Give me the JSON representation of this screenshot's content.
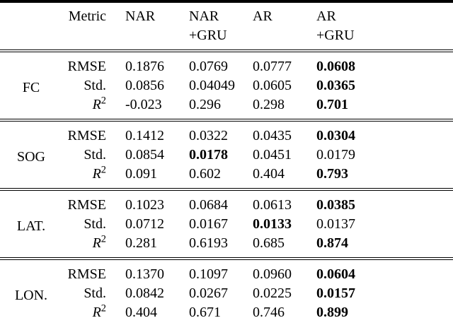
{
  "colors": {
    "background": "#ffffff",
    "text": "#000000",
    "rule": "#000000"
  },
  "table": {
    "header": {
      "metric_label": "Metric",
      "columns": [
        {
          "line1": "NAR",
          "line2": ""
        },
        {
          "line1": "NAR",
          "line2": "+GRU"
        },
        {
          "line1": "AR",
          "line2": ""
        },
        {
          "line1": "AR",
          "line2": "+GRU"
        }
      ]
    },
    "groups": [
      {
        "label": "FC",
        "rows": [
          {
            "metric": "RMSE",
            "values": [
              "0.1876",
              "0.0769",
              "0.0777",
              "0.0608"
            ],
            "bold_index": 3
          },
          {
            "metric": "Std.",
            "values": [
              "0.0856",
              "0.04049",
              "0.0605",
              "0.0365"
            ],
            "bold_index": 3
          },
          {
            "metric": "R2",
            "metric_base": "R",
            "metric_sup": "2",
            "values": [
              "-0.023",
              "0.296",
              "0.298",
              "0.701"
            ],
            "bold_index": 3
          }
        ]
      },
      {
        "label": "SOG",
        "rows": [
          {
            "metric": "RMSE",
            "values": [
              "0.1412",
              "0.0322",
              "0.0435",
              "0.0304"
            ],
            "bold_index": 3
          },
          {
            "metric": "Std.",
            "values": [
              "0.0854",
              "0.0178",
              "0.0451",
              "0.0179"
            ],
            "bold_index": 1
          },
          {
            "metric": "R2",
            "metric_base": "R",
            "metric_sup": "2",
            "values": [
              "0.091",
              "0.602",
              "0.404",
              "0.793"
            ],
            "bold_index": 3
          }
        ]
      },
      {
        "label": "LAT.",
        "rows": [
          {
            "metric": "RMSE",
            "values": [
              "0.1023",
              "0.0684",
              "0.0613",
              "0.0385"
            ],
            "bold_index": 3
          },
          {
            "metric": "Std.",
            "values": [
              "0.0712",
              "0.0167",
              "0.0133",
              "0.0137"
            ],
            "bold_index": 2
          },
          {
            "metric": "R2",
            "metric_base": "R",
            "metric_sup": "2",
            "values": [
              "0.281",
              "0.6193",
              "0.685",
              "0.874"
            ],
            "bold_index": 3
          }
        ]
      },
      {
        "label": "LON.",
        "rows": [
          {
            "metric": "RMSE",
            "values": [
              "0.1370",
              "0.1097",
              "0.0960",
              "0.0604"
            ],
            "bold_index": 3
          },
          {
            "metric": "Std.",
            "values": [
              "0.0842",
              "0.0267",
              "0.0225",
              "0.0157"
            ],
            "bold_index": 3
          },
          {
            "metric": "R2",
            "metric_base": "R",
            "metric_sup": "2",
            "values": [
              "0.404",
              "0.671",
              "0.746",
              "0.899"
            ],
            "bold_index": 3
          }
        ]
      }
    ]
  }
}
